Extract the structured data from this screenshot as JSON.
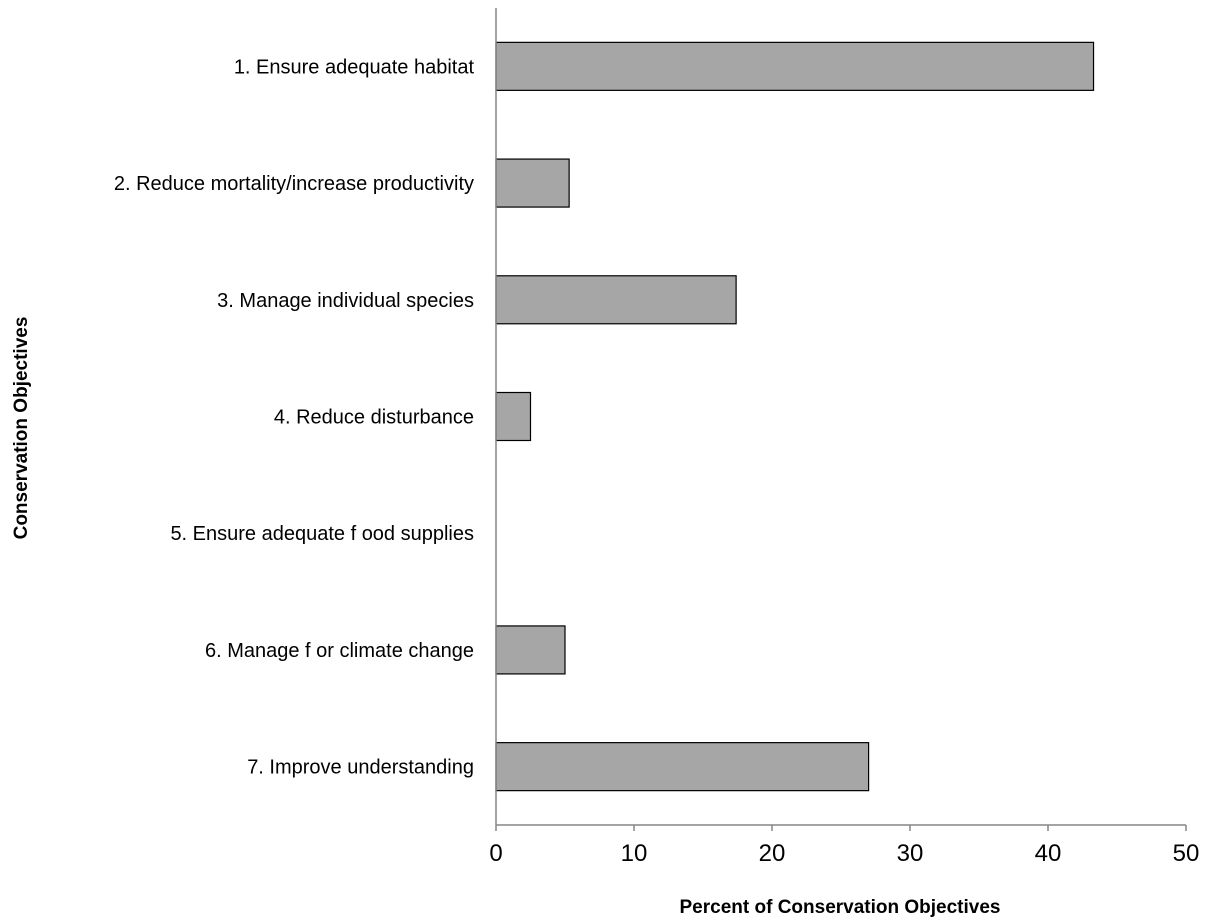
{
  "chart_data": {
    "type": "bar",
    "orientation": "horizontal",
    "title": "",
    "xlabel": "Percent of Conservation  Objectives",
    "ylabel": "Conservation  Objectives",
    "categories": [
      "1. Ensure adequate habitat",
      "2. Reduce mortality/increase productivity",
      "3. Manage individual species",
      "4. Reduce disturbance",
      "5. Ensure adequate f ood supplies",
      "6. Manage f or climate change",
      "7. Improve understanding"
    ],
    "values": [
      43.3,
      5.3,
      17.4,
      2.5,
      0,
      5.0,
      27.0
    ],
    "xlim": [
      0,
      50
    ],
    "xticks": [
      "0",
      "10",
      "20",
      "30",
      "40",
      "50"
    ],
    "xtick_values": [
      0,
      10,
      20,
      30,
      40,
      50
    ],
    "grid": false,
    "legend": "none",
    "colors": {
      "bar_fill": "#a6a6a6",
      "bar_stroke": "#000000",
      "axis": "#868686"
    }
  }
}
